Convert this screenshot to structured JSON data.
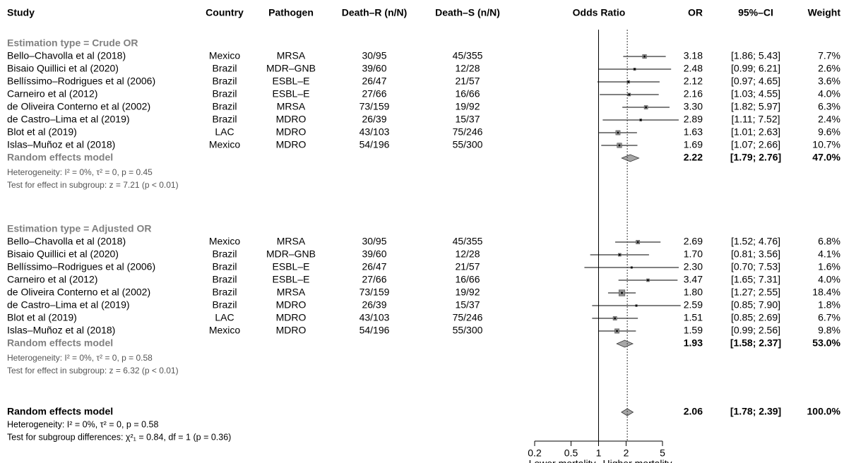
{
  "chart_data": {
    "type": "forest",
    "columns": {
      "study": "Study",
      "country": "Country",
      "pathogen": "Pathogen",
      "death_r": "Death–R (n/N)",
      "death_s": "Death–S (n/N)",
      "plot": "Odds Ratio",
      "or": "OR",
      "ci": "95%–CI",
      "weight": "Weight"
    },
    "groups": [
      {
        "label": "Estimation type = Crude OR",
        "studies": [
          {
            "study": "Bello–Chavolla et al (2018)",
            "country": "Mexico",
            "pathogen": "MRSA",
            "death_r": "30/95",
            "death_s": "45/355",
            "or": 3.18,
            "or_label": "3.18",
            "lower": 1.86,
            "upper": 5.43,
            "ci_label": "[1.86; 5.43]",
            "weight": 7.7,
            "weight_label": "7.7%"
          },
          {
            "study": "Bisaio Quillici et al (2020)",
            "country": "Brazil",
            "pathogen": "MDR–GNB",
            "death_r": "39/60",
            "death_s": "12/28",
            "or": 2.48,
            "or_label": "2.48",
            "lower": 0.99,
            "upper": 6.21,
            "ci_label": "[0.99; 6.21]",
            "weight": 2.6,
            "weight_label": "2.6%"
          },
          {
            "study": "Bellíssimo–Rodrigues et al (2006)",
            "country": "Brazil",
            "pathogen": "ESBL–E",
            "death_r": "26/47",
            "death_s": "21/57",
            "or": 2.12,
            "or_label": "2.12",
            "lower": 0.97,
            "upper": 4.65,
            "ci_label": "[0.97; 4.65]",
            "weight": 3.6,
            "weight_label": "3.6%"
          },
          {
            "study": "Carneiro et al (2012)",
            "country": "Brazil",
            "pathogen": "ESBL–E",
            "death_r": "27/66",
            "death_s": "16/66",
            "or": 2.16,
            "or_label": "2.16",
            "lower": 1.03,
            "upper": 4.55,
            "ci_label": "[1.03; 4.55]",
            "weight": 4.0,
            "weight_label": "4.0%"
          },
          {
            "study": "de Oliveira Conterno et al (2002)",
            "country": "Brazil",
            "pathogen": "MRSA",
            "death_r": "73/159",
            "death_s": "19/92",
            "or": 3.3,
            "or_label": "3.30",
            "lower": 1.82,
            "upper": 5.97,
            "ci_label": "[1.82; 5.97]",
            "weight": 6.3,
            "weight_label": "6.3%"
          },
          {
            "study": "de Castro–Lima et al (2019)",
            "country": "Brazil",
            "pathogen": "MDRO",
            "death_r": "26/39",
            "death_s": "15/37",
            "or": 2.89,
            "or_label": "2.89",
            "lower": 1.11,
            "upper": 7.52,
            "ci_label": "[1.11; 7.52]",
            "weight": 2.4,
            "weight_label": "2.4%"
          },
          {
            "study": "Blot et al (2019)",
            "country": "LAC",
            "pathogen": "MDRO",
            "death_r": "43/103",
            "death_s": "75/246",
            "or": 1.63,
            "or_label": "1.63",
            "lower": 1.01,
            "upper": 2.63,
            "ci_label": "[1.01; 2.63]",
            "weight": 9.6,
            "weight_label": "9.6%"
          },
          {
            "study": "Islas–Muñoz et al (2018)",
            "country": "Mexico",
            "pathogen": "MDRO",
            "death_r": "54/196",
            "death_s": "55/300",
            "or": 1.69,
            "or_label": "1.69",
            "lower": 1.07,
            "upper": 2.66,
            "ci_label": "[1.07; 2.66]",
            "weight": 10.7,
            "weight_label": "10.7%"
          }
        ],
        "summary": {
          "label": "Random effects model",
          "or": 2.22,
          "or_label": "2.22",
          "lower": 1.79,
          "upper": 2.76,
          "ci_label": "[1.79; 2.76]",
          "weight": 47.0,
          "weight_label": "47.0%"
        },
        "heterogeneity": "Heterogeneity: I² = 0%, τ² = 0, p = 0.45",
        "test": "Test for effect in subgroup: z = 7.21 (p < 0.01)"
      },
      {
        "label": "Estimation type = Adjusted OR",
        "studies": [
          {
            "study": "Bello–Chavolla et al (2018)",
            "country": "Mexico",
            "pathogen": "MRSA",
            "death_r": "30/95",
            "death_s": "45/355",
            "or": 2.69,
            "or_label": "2.69",
            "lower": 1.52,
            "upper": 4.76,
            "ci_label": "[1.52; 4.76]",
            "weight": 6.8,
            "weight_label": "6.8%"
          },
          {
            "study": "Bisaio Quillici et al (2020)",
            "country": "Brazil",
            "pathogen": "MDR–GNB",
            "death_r": "39/60",
            "death_s": "12/28",
            "or": 1.7,
            "or_label": "1.70",
            "lower": 0.81,
            "upper": 3.56,
            "ci_label": "[0.81; 3.56]",
            "weight": 4.1,
            "weight_label": "4.1%"
          },
          {
            "study": "Bellíssimo–Rodrigues et al (2006)",
            "country": "Brazil",
            "pathogen": "ESBL–E",
            "death_r": "26/47",
            "death_s": "21/57",
            "or": 2.3,
            "or_label": "2.30",
            "lower": 0.7,
            "upper": 7.53,
            "ci_label": "[0.70; 7.53]",
            "weight": 1.6,
            "weight_label": "1.6%"
          },
          {
            "study": "Carneiro et al (2012)",
            "country": "Brazil",
            "pathogen": "ESBL–E",
            "death_r": "27/66",
            "death_s": "16/66",
            "or": 3.47,
            "or_label": "3.47",
            "lower": 1.65,
            "upper": 7.31,
            "ci_label": "[1.65; 7.31]",
            "weight": 4.0,
            "weight_label": "4.0%"
          },
          {
            "study": "de Oliveira Conterno et al (2002)",
            "country": "Brazil",
            "pathogen": "MRSA",
            "death_r": "73/159",
            "death_s": "19/92",
            "or": 1.8,
            "or_label": "1.80",
            "lower": 1.27,
            "upper": 2.55,
            "ci_label": "[1.27; 2.55]",
            "weight": 18.4,
            "weight_label": "18.4%"
          },
          {
            "study": "de Castro–Lima et al (2019)",
            "country": "Brazil",
            "pathogen": "MDRO",
            "death_r": "26/39",
            "death_s": "15/37",
            "or": 2.59,
            "or_label": "2.59",
            "lower": 0.85,
            "upper": 7.9,
            "ci_label": "[0.85; 7.90]",
            "weight": 1.8,
            "weight_label": "1.8%"
          },
          {
            "study": "Blot et al (2019)",
            "country": "LAC",
            "pathogen": "MDRO",
            "death_r": "43/103",
            "death_s": "75/246",
            "or": 1.51,
            "or_label": "1.51",
            "lower": 0.85,
            "upper": 2.69,
            "ci_label": "[0.85; 2.69]",
            "weight": 6.7,
            "weight_label": "6.7%"
          },
          {
            "study": "Islas–Muñoz et al (2018)",
            "country": "Mexico",
            "pathogen": "MDRO",
            "death_r": "54/196",
            "death_s": "55/300",
            "or": 1.59,
            "or_label": "1.59",
            "lower": 0.99,
            "upper": 2.56,
            "ci_label": "[0.99; 2.56]",
            "weight": 9.8,
            "weight_label": "9.8%"
          }
        ],
        "summary": {
          "label": "Random effects model",
          "or": 1.93,
          "or_label": "1.93",
          "lower": 1.58,
          "upper": 2.37,
          "ci_label": "[1.58; 2.37]",
          "weight": 53.0,
          "weight_label": "53.0%"
        },
        "heterogeneity": "Heterogeneity: I² = 0%, τ² = 0, p = 0.58",
        "test": "Test for effect in subgroup: z = 6.32 (p < 0.01)"
      }
    ],
    "overall": {
      "label": "Random effects model",
      "or": 2.06,
      "or_label": "2.06",
      "lower": 1.78,
      "upper": 2.39,
      "ci_label": "[1.78; 2.39]",
      "weight": 100.0,
      "weight_label": "100.0%",
      "heterogeneity": "Heterogeneity: I² = 0%, τ² = 0, p = 0.58",
      "test": "Test for subgroup differences: χ²₁ = 0.84, df = 1 (p = 0.36)"
    },
    "log_scale": true,
    "xlim": [
      0.2,
      5
    ],
    "xticks": [
      0.2,
      0.5,
      1,
      2,
      5
    ],
    "ref_line": 1,
    "xlabel_left": "Lower mortality",
    "xlabel_right": "Higher mortality",
    "box_color": "#8c8c8c",
    "diamond_color": "#a6a6a6",
    "group_label_color": "#808080"
  }
}
